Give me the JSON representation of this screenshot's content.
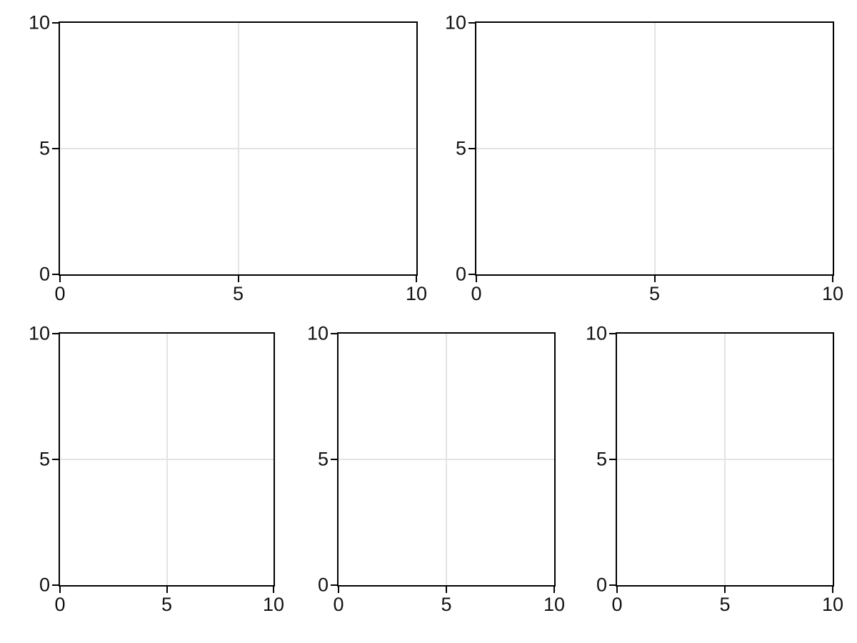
{
  "figure": {
    "background_color": "#ffffff",
    "spine_color": "#000000",
    "grid_color": "#e3e3e3",
    "tick_label_color": "#111111"
  },
  "ticks": {
    "x": [
      "0",
      "5",
      "10"
    ],
    "y_top_to_bottom": [
      "10",
      "5",
      "0"
    ]
  },
  "chart_data": [
    {
      "id": "subplot-top-left",
      "type": "line",
      "series": [],
      "title": "",
      "xlabel": "",
      "ylabel": "",
      "xlim": [
        0,
        10
      ],
      "ylim": [
        0,
        10
      ],
      "xticks": [
        0,
        5,
        10
      ],
      "yticks": [
        0,
        5,
        10
      ],
      "grid": true,
      "note": "empty axes, no data plotted"
    },
    {
      "id": "subplot-top-right",
      "type": "line",
      "series": [],
      "title": "",
      "xlabel": "",
      "ylabel": "",
      "xlim": [
        0,
        10
      ],
      "ylim": [
        0,
        10
      ],
      "xticks": [
        0,
        5,
        10
      ],
      "yticks": [
        0,
        5,
        10
      ],
      "grid": true,
      "note": "empty axes, no data plotted"
    },
    {
      "id": "subplot-bottom-left",
      "type": "line",
      "series": [],
      "title": "",
      "xlabel": "",
      "ylabel": "",
      "xlim": [
        0,
        10
      ],
      "ylim": [
        0,
        10
      ],
      "xticks": [
        0,
        5,
        10
      ],
      "yticks": [
        0,
        5,
        10
      ],
      "grid": true,
      "note": "empty axes, no data plotted"
    },
    {
      "id": "subplot-bottom-middle",
      "type": "line",
      "series": [],
      "title": "",
      "xlabel": "",
      "ylabel": "",
      "xlim": [
        0,
        10
      ],
      "ylim": [
        0,
        10
      ],
      "xticks": [
        0,
        5,
        10
      ],
      "yticks": [
        0,
        5,
        10
      ],
      "grid": true,
      "note": "empty axes, no data plotted"
    },
    {
      "id": "subplot-bottom-right",
      "type": "line",
      "series": [],
      "title": "",
      "xlabel": "",
      "ylabel": "",
      "xlim": [
        0,
        10
      ],
      "ylim": [
        0,
        10
      ],
      "xticks": [
        0,
        5,
        10
      ],
      "yticks": [
        0,
        5,
        10
      ],
      "grid": true,
      "note": "empty axes, no data plotted"
    }
  ]
}
